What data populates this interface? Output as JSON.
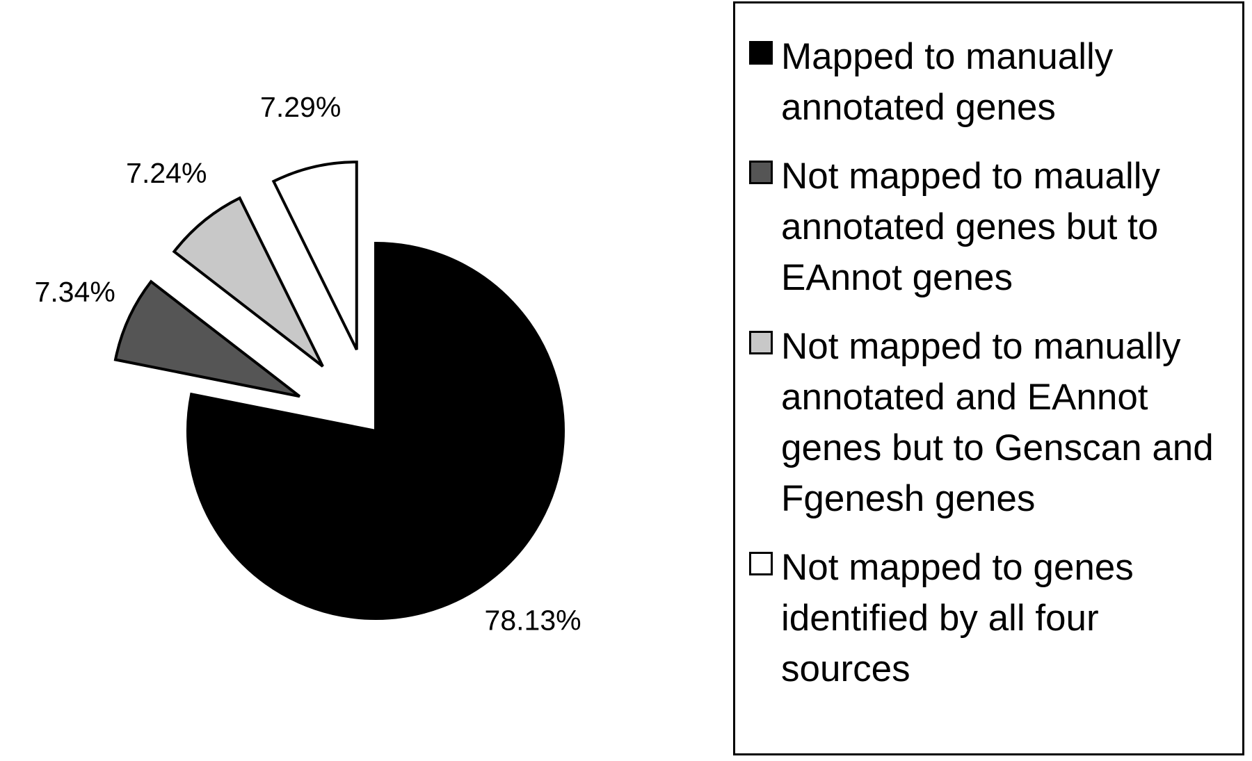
{
  "chart_data": {
    "type": "pie",
    "categories": [
      "Mapped to manually annotated genes",
      "Not mapped to maually annotated genes but to EAnnot genes",
      "Not mapped to manually annotated and EAnnot genes but to Genscan and Fgenesh genes",
      "Not mapped to genes identified by all four sources"
    ],
    "values": [
      78.13,
      7.34,
      7.24,
      7.29
    ],
    "value_labels": [
      "78.13%",
      "7.34%",
      "7.24%",
      "7.29%"
    ],
    "colors": [
      "#000000",
      "#555555",
      "#c8c8c8",
      "#ffffff"
    ],
    "explode": [
      false,
      true,
      true,
      true
    ],
    "legend": "right"
  }
}
